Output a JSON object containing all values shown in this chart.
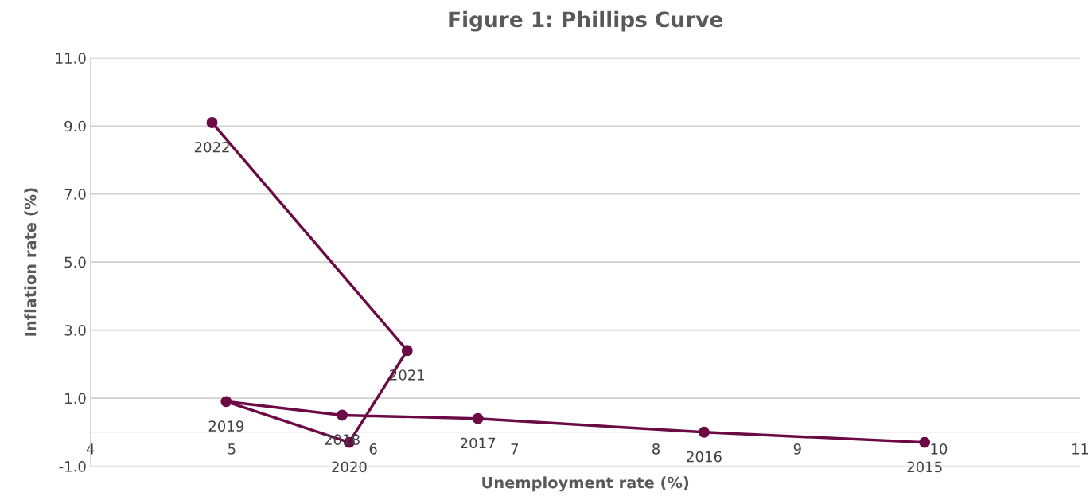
{
  "chart_data": {
    "type": "line",
    "title": "Figure 1: Phillips Curve",
    "xlabel": "Unemployment rate (%)",
    "ylabel": "Inflation rate (%)",
    "x": [
      9.9,
      8.34,
      6.74,
      5.78,
      4.96,
      5.83,
      6.24,
      4.86
    ],
    "series": [
      {
        "color": "#6b0a45",
        "values": [
          -0.3,
          0.0,
          0.4,
          0.5,
          0.9,
          -0.3,
          2.4,
          9.1
        ]
      }
    ],
    "marker": "circle",
    "line_style": "solid",
    "grid": "y",
    "legend": false,
    "xlim": [
      4,
      11
    ],
    "xticks": [
      4,
      5,
      6,
      7,
      8,
      9,
      10,
      11
    ],
    "ylim": [
      -1,
      11
    ],
    "yticks": [
      {
        "value": -1,
        "label": "-1.0"
      },
      {
        "value": 1,
        "label": "1.0"
      },
      {
        "value": 3,
        "label": "3.0"
      },
      {
        "value": 5,
        "label": "5.0"
      },
      {
        "value": 7,
        "label": "7.0"
      },
      {
        "value": 9,
        "label": "9.0"
      },
      {
        "value": 11,
        "label": "11.0"
      }
    ],
    "annotations": [
      {
        "text": "2015",
        "x": 9.9,
        "y": -0.3
      },
      {
        "text": "2016",
        "x": 8.34,
        "y": 0.0
      },
      {
        "text": "2017",
        "x": 6.74,
        "y": 0.4
      },
      {
        "text": "2018",
        "x": 5.78,
        "y": 0.5
      },
      {
        "text": "2019",
        "x": 4.96,
        "y": 0.9
      },
      {
        "text": "2020",
        "x": 5.83,
        "y": -0.3
      },
      {
        "text": "2021",
        "x": 6.24,
        "y": 2.4
      },
      {
        "text": "2022",
        "x": 4.86,
        "y": 9.1
      }
    ]
  }
}
